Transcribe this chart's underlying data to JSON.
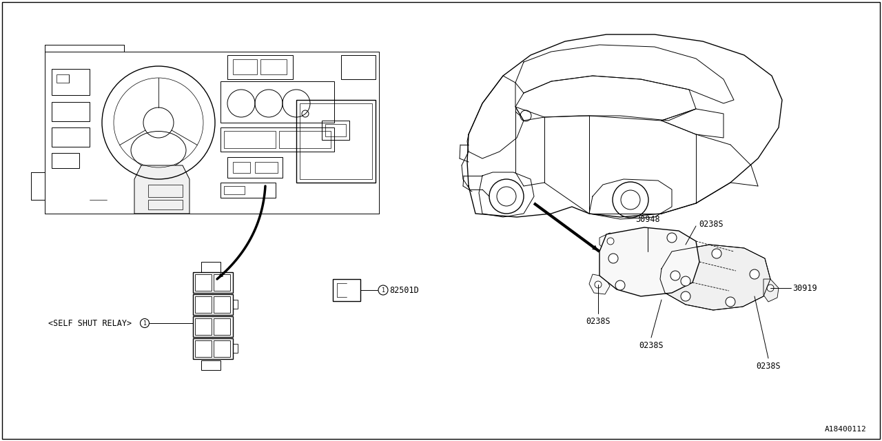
{
  "bg_color": "#ffffff",
  "line_color": "#000000",
  "title_code": "A18400112",
  "self_shut_relay_label": "<SELF SHUT RELAY>",
  "relay_part": "82501D",
  "part_30948": "30948",
  "part_30919": "30919",
  "part_0238S": "0238S",
  "font_size_parts": 8.5,
  "font_size_label": 8.5
}
